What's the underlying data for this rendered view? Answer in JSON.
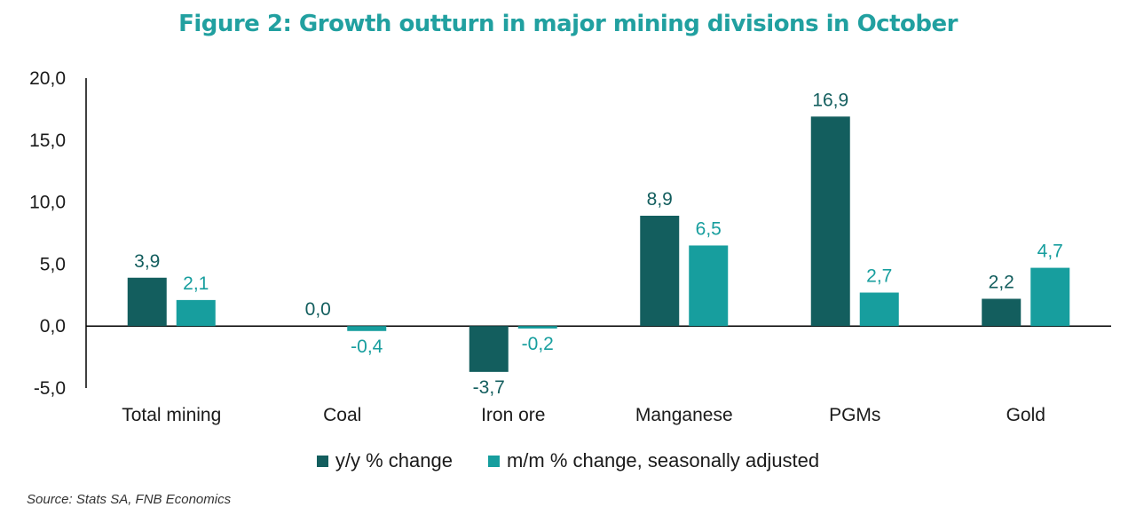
{
  "chart_data": {
    "type": "bar",
    "title": "Figure 2: Growth outturn in major mining divisions in October",
    "categories": [
      "Total mining",
      "Coal",
      "Iron ore",
      "Manganese",
      "PGMs",
      "Gold"
    ],
    "series": [
      {
        "name": "y/y % change",
        "values": [
          3.9,
          0.0,
          -3.7,
          8.9,
          16.9,
          2.2
        ],
        "labels": [
          "3,9",
          "0,0",
          "-3,7",
          "8,9",
          "16,9",
          "2,2"
        ],
        "color": "#135e5e"
      },
      {
        "name": "m/m % change, seasonally adjusted",
        "values": [
          2.1,
          -0.4,
          -0.2,
          6.5,
          2.7,
          4.7
        ],
        "labels": [
          "2,1",
          "-0,4",
          "-0,2",
          "6,5",
          "2,7",
          "4,7"
        ],
        "color": "#179e9e"
      }
    ],
    "ylim": [
      -5,
      20
    ],
    "yticks": [
      -5,
      0,
      5,
      10,
      15,
      20
    ],
    "ytick_labels": [
      "-5,0",
      "0,0",
      "5,0",
      "10,0",
      "15,0",
      "20,0"
    ],
    "xlabel": "",
    "ylabel": "",
    "grid": false,
    "legend": "bottom"
  },
  "title_color": "#21a0a0",
  "source": "Source: Stats SA, FNB Economics"
}
